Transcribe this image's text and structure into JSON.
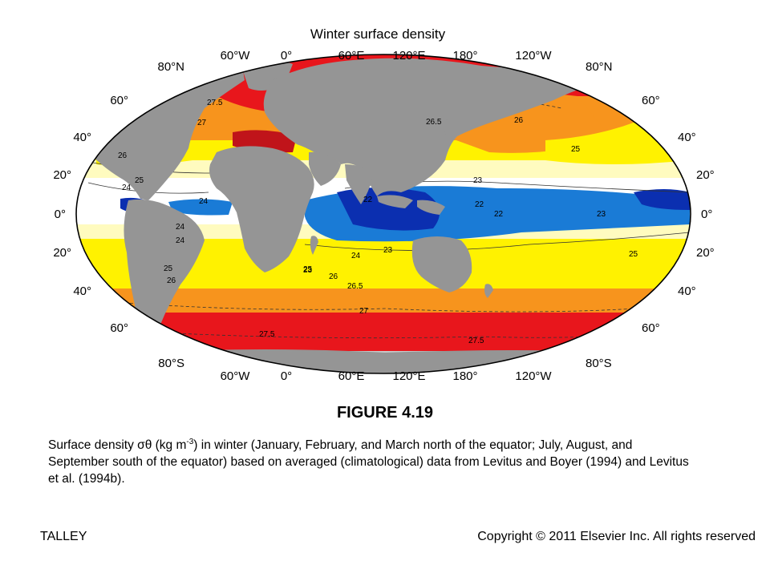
{
  "map": {
    "title": "Winter surface density",
    "lon_labels_top": [
      "60°W",
      "0°",
      "60°E",
      "120°E",
      "180°",
      "120°W"
    ],
    "lon_labels_bottom": [
      "60°W",
      "0°",
      "60°E",
      "120°E",
      "180°",
      "120°W"
    ],
    "lat_labels_left": [
      "80°N",
      "60°",
      "40°",
      "20°",
      "0°",
      "20°",
      "40°",
      "60°",
      "80°S"
    ],
    "lat_labels_right": [
      "80°N",
      "60°",
      "40°",
      "20°",
      "0°",
      "20°",
      "40°",
      "60°",
      "80°S"
    ],
    "contour_labels": [
      "27.5",
      "27",
      "26",
      "25",
      "24",
      "23",
      "22",
      "26.5",
      "26",
      "25",
      "23",
      "24",
      "22",
      "23",
      "22",
      "24",
      "25",
      "24",
      "23",
      "24",
      "25",
      "26",
      "26.5",
      "27",
      "27.5",
      "27.5",
      "26",
      "25"
    ],
    "colors": {
      "land": "#959595",
      "band_27_5": "#e8161c",
      "band_27": "#f05a1a",
      "band_26": "#f7941d",
      "band_25": "#fff200",
      "band_24": "#fffbbf",
      "band_23": "#ffffff",
      "band_22": "#1a7bd6",
      "band_21": "#0b2fb0",
      "band_high": "#c0141a"
    }
  },
  "figure_number": "FIGURE 4.19",
  "caption": {
    "part1": "Surface density σθ (kg m",
    "sup": "-3",
    "part2": ") in winter (January, February, and March north of the equator; July, August, and September south of the equator) based on averaged (climatological) data from Levitus and Boyer (1994) and Levitus et al. (1994b)."
  },
  "footer": {
    "left": "TALLEY",
    "right": "Copyright © 2011 Elsevier Inc. All rights reserved"
  }
}
